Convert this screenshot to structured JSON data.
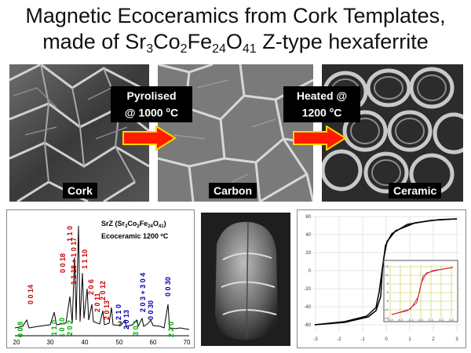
{
  "title": {
    "line1": "Magnetic Ecoceramics from Cork Templates,",
    "line2_prefix": "made of Sr",
    "sub1": "3",
    "mid1": "Co",
    "sub2": "2",
    "mid2": "Fe",
    "sub3": "24",
    "mid3": "O",
    "sub4": "41",
    "line2_suffix": " Z-type hexaferrite"
  },
  "images": [
    {
      "label": "Cork"
    },
    {
      "label": "Carbon"
    },
    {
      "label": "Ceramic"
    }
  ],
  "steps": [
    {
      "line1": "Pyrolised",
      "line2": "@ 1000 ",
      "unit": "C",
      "deg": "o"
    },
    {
      "line1": "Heated @",
      "line2": "1200 ",
      "unit": "C",
      "deg": "o"
    }
  ],
  "colors": {
    "arrow_fill": "#ff1a00",
    "arrow_stroke": "#ffd400",
    "red_label": "#cc0000",
    "blue_label": "#0000aa",
    "green_label": "#00aa00"
  },
  "xrd": {
    "legend_line1_prefix": "SrZ (Sr",
    "legend_line1_rest": "Co",
    "legend_line2": "Ecoceramic 1200 ºC",
    "xticks": [
      "20",
      "30",
      "40",
      "50",
      "60",
      "70"
    ],
    "peak_labels": [
      {
        "text": "0 0 14",
        "color": "red"
      },
      {
        "text": "0 0 18",
        "color": "red"
      },
      {
        "text": "1 1 0",
        "color": "red"
      },
      {
        "text": "1 1 18 + 1 0 17",
        "color": "red"
      },
      {
        "text": "1 1 10",
        "color": "red"
      },
      {
        "text": "2 0 6",
        "color": "red"
      },
      {
        "text": "2 0 11",
        "color": "red"
      },
      {
        "text": "2 0 12",
        "color": "red"
      },
      {
        "text": "2 0 13",
        "color": "red"
      },
      {
        "text": "0 0 8",
        "color": "green"
      },
      {
        "text": "1 1 0",
        "color": "green"
      },
      {
        "text": "1 0 10",
        "color": "green"
      },
      {
        "text": "2 0 2",
        "color": "green"
      },
      {
        "text": "2 1 0",
        "color": "blue"
      },
      {
        "text": "2 0 13",
        "color": "blue"
      },
      {
        "text": "2 0 3 + 3 0 4",
        "color": "blue"
      },
      {
        "text": "0 0 30",
        "color": "blue"
      },
      {
        "text": "0 0 30",
        "color": "blue"
      },
      {
        "text": "3 0 1",
        "color": "green"
      },
      {
        "text": "2 2 0",
        "color": "green"
      },
      {
        "text": "?",
        "color": "black"
      }
    ]
  },
  "hysteresis": {
    "yticks": [
      "60",
      "40",
      "20",
      "0",
      "-20",
      "-40",
      "-60"
    ],
    "xticks": [
      "-3",
      "-2",
      "-1",
      "0",
      "1",
      "2",
      "3"
    ],
    "inset_yticks": [
      "15",
      "10",
      "5",
      "0",
      "-5",
      "-10",
      "-15"
    ],
    "inset_xticks": [
      "-0.3",
      "-0.2",
      "-0.1",
      "0.0",
      "0.1",
      "0.2",
      "0.3"
    ],
    "curve_color": "#000000",
    "inset_color": "#cc2244"
  }
}
